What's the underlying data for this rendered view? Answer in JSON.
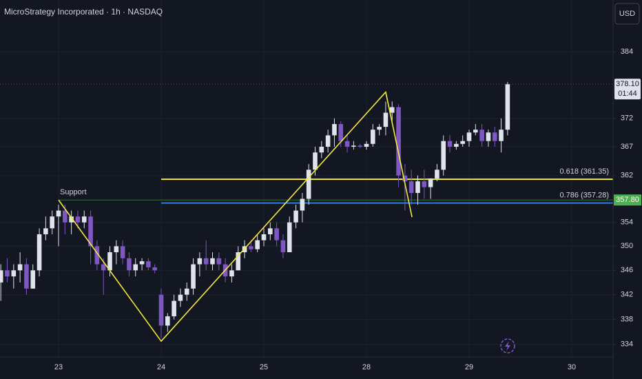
{
  "chart_data": {
    "type": "candlestick",
    "title": "MicroStrategy Incorporated · 1h · NASDAQ",
    "currency": "USD",
    "log_scale": true,
    "grid": true,
    "up_color": "#e0e3eb",
    "down_color": "#7e57c2",
    "ylim": [
      332.0,
      393.6
    ],
    "yticks": [
      334,
      338,
      342,
      346,
      350,
      354,
      362,
      367,
      372,
      384
    ],
    "categories": [
      null,
      null,
      null,
      null,
      null,
      null,
      null,
      null,
      null,
      "23",
      null,
      null,
      null,
      null,
      null,
      null,
      null,
      null,
      null,
      null,
      null,
      null,
      null,
      null,
      null,
      "24",
      null,
      null,
      null,
      null,
      null,
      null,
      null,
      null,
      null,
      null,
      null,
      null,
      null,
      null,
      null,
      "25",
      null,
      null,
      null,
      null,
      null,
      null,
      null,
      null,
      null,
      null,
      null,
      null,
      null,
      null,
      null,
      "28",
      null,
      null,
      null,
      null,
      null,
      null,
      null,
      null,
      null,
      null,
      null,
      null,
      null,
      null,
      null,
      "29",
      null,
      null,
      null,
      null,
      null,
      null,
      null,
      null,
      null,
      null,
      null,
      null,
      null,
      null,
      null,
      "30"
    ],
    "series": {
      "open": [
        344,
        346,
        345,
        346,
        347,
        343,
        346,
        352,
        353,
        355,
        356,
        354,
        355,
        354,
        355,
        350,
        347,
        346,
        349,
        350,
        348,
        346,
        347,
        347.5,
        346.5,
        342,
        337,
        338.5,
        341,
        342,
        343,
        347,
        348,
        347,
        348,
        347,
        345,
        346,
        349,
        350,
        349.5,
        351,
        352,
        353,
        351,
        349,
        354,
        356,
        358,
        363,
        366,
        367,
        369,
        371,
        368,
        367,
        367.2,
        367,
        367.5,
        370,
        370.5,
        373,
        374,
        362,
        361,
        359,
        361,
        360,
        361.5,
        363,
        368,
        367,
        367.5,
        368,
        369.5,
        370,
        368,
        369.5,
        368,
        370,
        null,
        null,
        null,
        null,
        null,
        null,
        null,
        null,
        null,
        null
      ],
      "high": [
        347,
        348,
        347,
        349,
        348,
        347,
        353,
        355,
        356,
        357,
        357,
        356,
        356,
        356,
        356,
        351,
        348,
        350,
        351,
        351,
        349,
        348,
        348,
        348,
        347,
        343,
        339,
        342,
        343,
        344,
        348,
        349,
        351,
        349,
        349,
        348,
        347,
        350,
        351,
        351,
        352,
        353,
        354,
        354,
        352,
        355,
        357,
        359,
        364,
        367,
        368,
        370,
        372,
        371.5,
        369,
        368,
        367.5,
        368,
        371,
        371,
        375,
        375,
        374.5,
        364,
        363,
        362,
        363,
        361,
        364,
        369,
        369,
        368,
        369,
        370,
        371,
        371,
        370,
        370.5,
        372,
        378.5,
        null,
        null,
        null,
        null,
        null,
        null,
        null,
        null,
        null,
        null
      ],
      "low": [
        341,
        344,
        343,
        344,
        342,
        343,
        345,
        351,
        352,
        350,
        352,
        352,
        353,
        353,
        347,
        346,
        342,
        345,
        347,
        347,
        345,
        345,
        346,
        346,
        345.5,
        335,
        336,
        338,
        340,
        341,
        342,
        345,
        346,
        346,
        346,
        344,
        344,
        346,
        348,
        349,
        349,
        350,
        351,
        350,
        348,
        349,
        353,
        354,
        357,
        362,
        365,
        366,
        367,
        367,
        366,
        366.5,
        366.8,
        366.5,
        367,
        369,
        369,
        371,
        360,
        356,
        357,
        357,
        358,
        358,
        361,
        362,
        366,
        366.5,
        367,
        367,
        369,
        367,
        367,
        367,
        366,
        369,
        null,
        null,
        null,
        null,
        null,
        null,
        null,
        null,
        null,
        null
      ],
      "close": [
        346,
        345,
        346,
        347,
        343,
        346,
        352,
        353,
        355,
        356,
        354,
        355,
        354,
        355,
        350,
        347,
        346,
        349,
        350,
        348,
        346,
        347,
        347.5,
        346.5,
        346,
        337,
        338.5,
        341,
        342,
        343,
        347,
        348,
        347,
        348,
        347,
        345,
        346,
        349,
        350,
        349.5,
        351,
        352,
        353,
        351,
        349,
        354,
        356,
        358,
        363,
        366,
        367,
        369,
        371,
        368,
        367,
        367.2,
        367,
        367.5,
        370,
        370.5,
        373,
        374,
        362,
        361,
        359,
        361,
        360,
        361.5,
        363,
        368,
        367,
        367.5,
        368,
        369.5,
        370,
        368,
        369.5,
        368,
        370,
        378.1,
        null,
        null,
        null,
        null,
        null,
        null,
        null,
        null,
        null,
        null
      ]
    },
    "current_price": {
      "value": 378.1,
      "label": "378.10"
    },
    "countdown": "01:44",
    "support": {
      "label": "Support",
      "value": 357.8,
      "value_label": "357.80",
      "color": "#4caf50"
    },
    "fib_levels": [
      {
        "label": "0.618 (361.35)",
        "value": 361.35,
        "color": "#f5ea3d"
      },
      {
        "label": "0.786 (357.28)",
        "value": 357.28,
        "color": "#2f7fe0"
      }
    ],
    "zigzag": {
      "color": "#f5ea3d",
      "x": [
        9,
        25,
        60,
        64.1
      ],
      "values": [
        357.8,
        334.5,
        376.7,
        354.9
      ]
    }
  }
}
